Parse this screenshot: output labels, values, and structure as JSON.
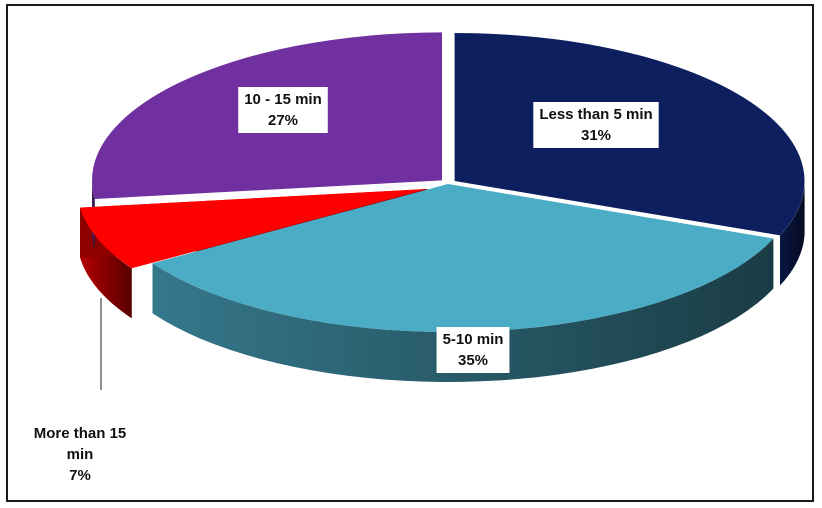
{
  "chart_data": {
    "type": "pie",
    "title": "",
    "slices": [
      {
        "name": "Less than 5 min",
        "value": 31,
        "label": "31%",
        "color": "#0d1f5e"
      },
      {
        "name": "5-10 min",
        "value": 35,
        "label": "35%",
        "color": "#4bacc6"
      },
      {
        "name": "More than 15 min",
        "label_lines": [
          "More than 15",
          "min"
        ],
        "value": 7,
        "label": "7%",
        "color": "#ff0000"
      },
      {
        "name": "10 - 15 min",
        "value": 27,
        "label": "27%",
        "color": "#7030a0"
      }
    ],
    "style": "3d-exploded",
    "legend": "none"
  }
}
